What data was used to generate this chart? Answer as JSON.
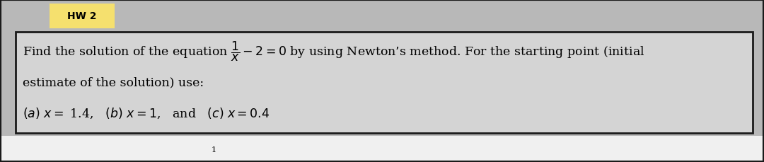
{
  "title": "HW 2",
  "title_bg": "#f5e06e",
  "background_top": "#b0b0b0",
  "background_bottom": "#ffffff",
  "box_bg": "#d4d4d4",
  "box_edge": "#1a1a1a",
  "line1": "Find the solution of the equation $\\dfrac{1}{x}-2 = 0$ by using Newton’s method. For the starting point (initial",
  "line2": "estimate of the solution) use:",
  "line3": "$(a)$ $x=$ 1.4,   $(b)$ $x=1$,   and   $(c)$ $x=0.4$",
  "page_number": "1",
  "font_size_title": 10,
  "font_size_body": 12.5,
  "font_size_page": 8,
  "fig_width": 10.8,
  "fig_height": 2.3,
  "dpi": 100
}
